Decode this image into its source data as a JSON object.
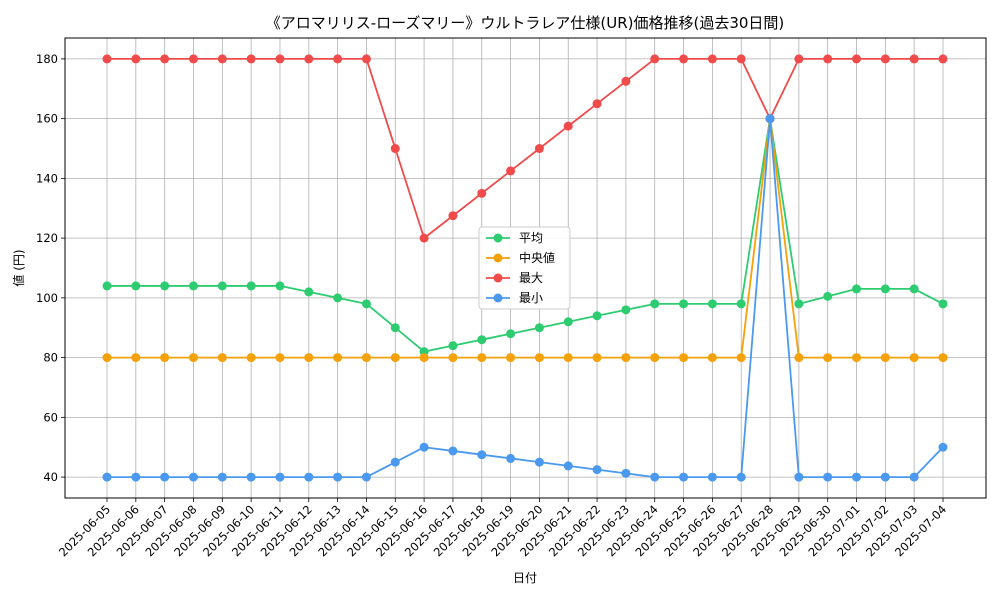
{
  "chart_data": {
    "type": "line",
    "title": "《アロマリリス-ローズマリー》ウルトラレア仕様(UR)価格推移(過去30日間)",
    "xlabel": "日付",
    "ylabel": "値 (円)",
    "ylim": [
      33,
      187
    ],
    "yticks": [
      40,
      60,
      80,
      100,
      120,
      140,
      160,
      180
    ],
    "grid": true,
    "legend_position": "center",
    "x": [
      "2025-06-05",
      "2025-06-06",
      "2025-06-07",
      "2025-06-08",
      "2025-06-09",
      "2025-06-10",
      "2025-06-11",
      "2025-06-12",
      "2025-06-13",
      "2025-06-14",
      "2025-06-15",
      "2025-06-16",
      "2025-06-17",
      "2025-06-18",
      "2025-06-19",
      "2025-06-20",
      "2025-06-21",
      "2025-06-22",
      "2025-06-23",
      "2025-06-24",
      "2025-06-25",
      "2025-06-26",
      "2025-06-27",
      "2025-06-28",
      "2025-06-29",
      "2025-06-30",
      "2025-07-01",
      "2025-07-02",
      "2025-07-03",
      "2025-07-04"
    ],
    "series": [
      {
        "name": "平均",
        "color": "#2ecc71",
        "values": [
          104,
          104,
          104,
          104,
          104,
          104,
          104,
          102,
          100,
          98,
          90,
          82,
          84,
          86,
          88,
          90,
          92,
          94,
          96,
          98,
          98,
          98,
          98,
          160,
          98,
          100.5,
          103,
          103,
          103,
          98
        ]
      },
      {
        "name": "中央値",
        "color": "#f5a10a",
        "values": [
          80,
          80,
          80,
          80,
          80,
          80,
          80,
          80,
          80,
          80,
          80,
          80,
          80,
          80,
          80,
          80,
          80,
          80,
          80,
          80,
          80,
          80,
          80,
          160,
          80,
          80,
          80,
          80,
          80,
          80
        ]
      },
      {
        "name": "最大",
        "color": "#ef4b4b",
        "values": [
          180,
          180,
          180,
          180,
          180,
          180,
          180,
          180,
          180,
          180,
          150,
          120,
          127.5,
          135,
          142.5,
          150,
          157.5,
          165,
          172.5,
          180,
          180,
          180,
          180,
          160,
          180,
          180,
          180,
          180,
          180,
          180
        ]
      },
      {
        "name": "最小",
        "color": "#4a99ee",
        "values": [
          40,
          40,
          40,
          40,
          40,
          40,
          40,
          40,
          40,
          40,
          45,
          50,
          48.75,
          47.5,
          46.25,
          45,
          43.75,
          42.5,
          41.25,
          40,
          40,
          40,
          40,
          160,
          40,
          40,
          40,
          40,
          40,
          50
        ]
      }
    ]
  }
}
